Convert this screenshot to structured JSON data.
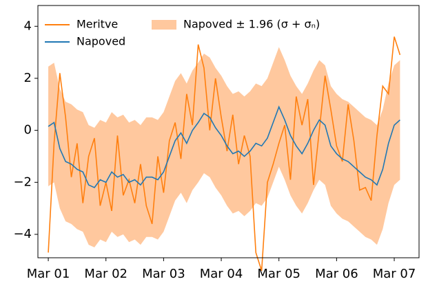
{
  "chart_data": {
    "type": "line",
    "x": [
      0,
      0.1,
      0.2,
      0.3,
      0.4,
      0.5,
      0.6,
      0.7,
      0.8,
      0.9,
      1.0,
      1.1,
      1.2,
      1.3,
      1.4,
      1.5,
      1.6,
      1.7,
      1.8,
      1.9,
      2.0,
      2.1,
      2.2,
      2.3,
      2.4,
      2.5,
      2.6,
      2.7,
      2.8,
      2.9,
      3.0,
      3.1,
      3.2,
      3.3,
      3.4,
      3.5,
      3.6,
      3.7,
      3.8,
      3.9,
      4.0,
      4.1,
      4.2,
      4.3,
      4.4,
      4.5,
      4.6,
      4.7,
      4.8,
      4.9,
      5.0,
      5.1,
      5.2,
      5.3,
      5.4,
      5.5,
      5.6,
      5.7,
      5.8,
      5.9,
      6.0,
      6.1
    ],
    "series": [
      {
        "name": "Meritve",
        "color": "#ff7f0e",
        "values": [
          -4.7,
          -0.5,
          2.2,
          0.5,
          -1.8,
          -0.5,
          -2.8,
          -1.0,
          -0.3,
          -2.9,
          -2.0,
          -3.1,
          -0.2,
          -2.5,
          -1.9,
          -2.8,
          -1.3,
          -2.9,
          -3.6,
          -1.0,
          -2.4,
          -0.4,
          0.3,
          -1.1,
          1.4,
          0.2,
          3.3,
          2.4,
          0.0,
          2.0,
          0.5,
          -0.8,
          0.6,
          -1.3,
          -0.2,
          -1.0,
          -4.7,
          -5.4,
          -2.0,
          -1.3,
          -0.5,
          0.2,
          -1.9,
          1.3,
          0.2,
          1.2,
          -2.1,
          0.0,
          2.1,
          0.8,
          -0.6,
          -1.2,
          1.0,
          -0.4,
          -2.3,
          -2.2,
          -2.7,
          -0.2,
          1.7,
          1.4,
          3.6,
          2.9
        ]
      },
      {
        "name": "Napoved",
        "color": "#1f77b4",
        "values": [
          0.15,
          0.3,
          -0.7,
          -1.2,
          -1.3,
          -1.5,
          -1.6,
          -2.1,
          -2.2,
          -1.9,
          -2.0,
          -1.6,
          -1.8,
          -1.7,
          -2.0,
          -1.9,
          -2.1,
          -1.8,
          -1.8,
          -1.9,
          -1.6,
          -1.0,
          -0.4,
          -0.1,
          -0.5,
          0.0,
          0.3,
          0.65,
          0.5,
          0.1,
          -0.2,
          -0.6,
          -0.9,
          -0.8,
          -1.0,
          -0.8,
          -0.5,
          -0.6,
          -0.3,
          0.3,
          0.9,
          0.4,
          -0.2,
          -0.6,
          -0.9,
          -0.5,
          0.0,
          0.4,
          0.2,
          -0.6,
          -0.9,
          -1.1,
          -1.2,
          -1.4,
          -1.6,
          -1.8,
          -1.9,
          -2.1,
          -1.5,
          -0.5,
          0.2,
          0.4
        ]
      },
      {
        "name": "Napoved ± 1.96 (σ + σₙ)",
        "color": "#ffc89e",
        "type": "band",
        "upper": [
          2.45,
          2.6,
          1.6,
          1.1,
          1.0,
          0.8,
          0.7,
          0.2,
          0.1,
          0.4,
          0.3,
          0.7,
          0.5,
          0.6,
          0.3,
          0.4,
          0.2,
          0.5,
          0.5,
          0.4,
          0.7,
          1.3,
          1.9,
          2.2,
          1.8,
          2.3,
          2.6,
          2.95,
          2.8,
          2.4,
          2.1,
          1.7,
          1.4,
          1.5,
          1.3,
          1.5,
          1.8,
          1.7,
          2.0,
          2.6,
          3.2,
          2.7,
          2.1,
          1.7,
          1.4,
          1.8,
          2.3,
          2.7,
          2.5,
          1.7,
          1.4,
          1.2,
          1.1,
          0.9,
          0.7,
          0.5,
          0.4,
          0.2,
          0.8,
          1.8,
          2.5,
          2.7
        ],
        "lower": [
          -2.15,
          -2.0,
          -3.0,
          -3.5,
          -3.6,
          -3.8,
          -3.9,
          -4.4,
          -4.5,
          -4.2,
          -4.3,
          -3.9,
          -4.1,
          -4.0,
          -4.3,
          -4.2,
          -4.4,
          -4.1,
          -4.1,
          -4.2,
          -3.9,
          -3.3,
          -2.7,
          -2.4,
          -2.8,
          -2.3,
          -2.0,
          -1.65,
          -1.8,
          -2.2,
          -2.5,
          -2.9,
          -3.2,
          -3.1,
          -3.3,
          -3.1,
          -2.8,
          -2.9,
          -2.6,
          -2.0,
          -1.4,
          -1.9,
          -2.5,
          -2.9,
          -3.2,
          -2.8,
          -2.3,
          -1.9,
          -2.1,
          -2.9,
          -3.2,
          -3.4,
          -3.5,
          -3.7,
          -3.9,
          -4.1,
          -4.2,
          -4.4,
          -3.8,
          -2.8,
          -2.1,
          -1.9
        ]
      }
    ],
    "xlim": [
      -0.18,
      6.43
    ],
    "xticks": [
      {
        "value": 0,
        "label": "Mar 01"
      },
      {
        "value": 1,
        "label": "Mar 02"
      },
      {
        "value": 2,
        "label": "Mar 03"
      },
      {
        "value": 3,
        "label": "Mar 04"
      },
      {
        "value": 4,
        "label": "Mar 05"
      },
      {
        "value": 5,
        "label": "Mar 06"
      },
      {
        "value": 6,
        "label": "Mar 07"
      }
    ],
    "ylim": [
      -4.9,
      4.8
    ],
    "yticks": [
      {
        "value": -4,
        "label": "−4"
      },
      {
        "value": -2,
        "label": "−2"
      },
      0,
      2,
      4
    ],
    "legend": "upper left"
  }
}
